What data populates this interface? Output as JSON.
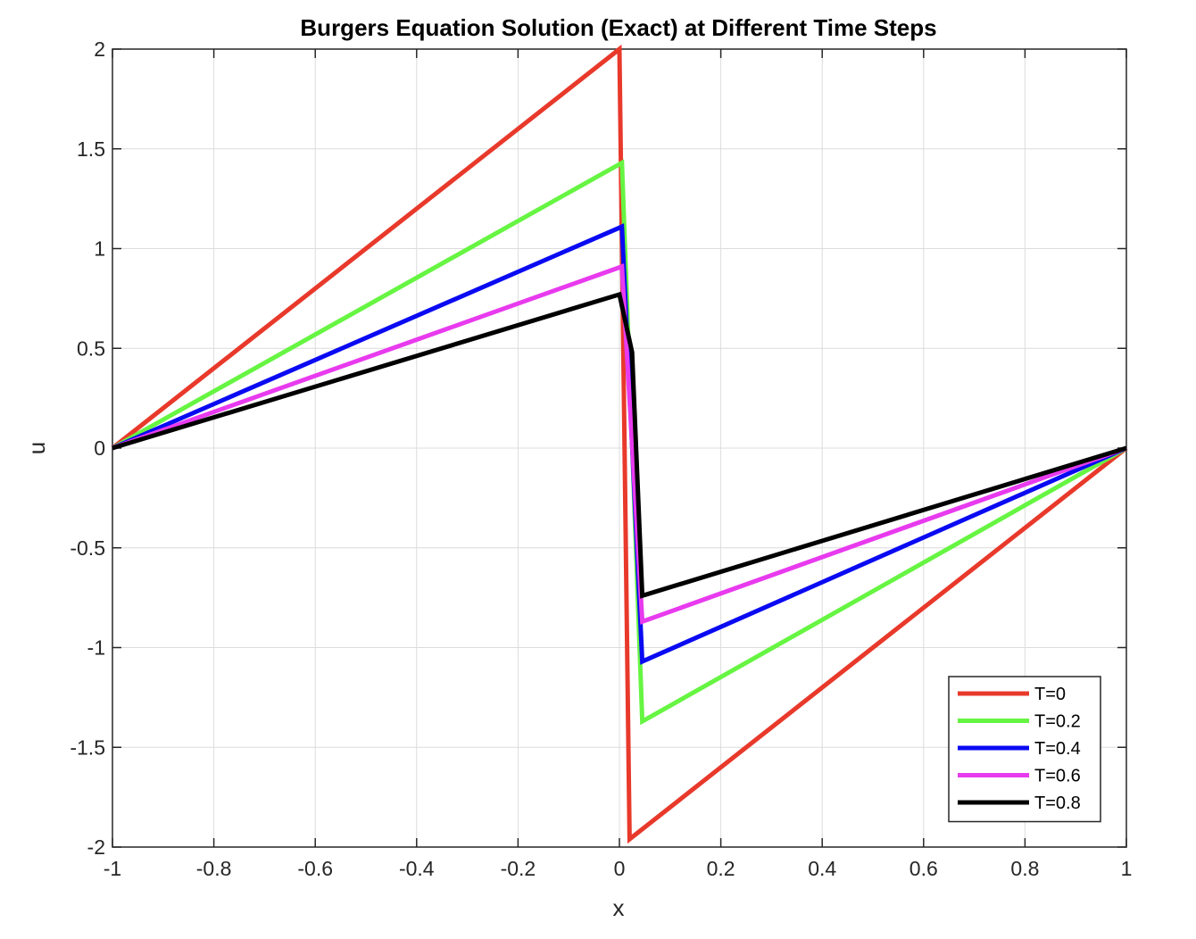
{
  "chart_data": {
    "type": "line",
    "title": "Burgers Equation Solution (Exact) at Different Time Steps",
    "xlabel": "x",
    "ylabel": "u",
    "xlim": [
      -1,
      1
    ],
    "ylim": [
      -2,
      2
    ],
    "xticks": [
      -1,
      -0.8,
      -0.6,
      -0.4,
      -0.2,
      0,
      0.2,
      0.4,
      0.6,
      0.8,
      1
    ],
    "xtick_labels": [
      "-1",
      "-0.8",
      "-0.6",
      "-0.4",
      "-0.2",
      "0",
      "0.2",
      "0.4",
      "0.6",
      "0.8",
      "1"
    ],
    "yticks": [
      -2,
      -1.5,
      -1,
      -0.5,
      0,
      0.5,
      1,
      1.5,
      2
    ],
    "ytick_labels": [
      "-2",
      "-1.5",
      "-1",
      "-0.5",
      "0",
      "0.5",
      "1",
      "1.5",
      "2"
    ],
    "grid": true,
    "legend_position": "bottom-right",
    "series": [
      {
        "name": "T=0",
        "color": "#e8392b",
        "x": [
          -1,
          0,
          0.02,
          1
        ],
        "y": [
          0,
          2,
          -1.96,
          0
        ]
      },
      {
        "name": "T=0.2",
        "color": "#66f542",
        "x": [
          -1,
          0.005,
          0.045,
          1
        ],
        "y": [
          0,
          1.43,
          -1.37,
          0
        ]
      },
      {
        "name": "T=0.4",
        "color": "#0a0af2",
        "x": [
          -1,
          0.005,
          0.045,
          1
        ],
        "y": [
          0,
          1.11,
          -1.07,
          0
        ]
      },
      {
        "name": "T=0.6",
        "color": "#e83aee",
        "x": [
          -1,
          0.005,
          0.045,
          1
        ],
        "y": [
          0,
          0.91,
          -0.87,
          0
        ]
      },
      {
        "name": "T=0.8",
        "color": "#000000",
        "x": [
          -1,
          0,
          0.025,
          0.045,
          1
        ],
        "y": [
          0,
          0.77,
          0.48,
          -0.74,
          0
        ]
      }
    ]
  }
}
